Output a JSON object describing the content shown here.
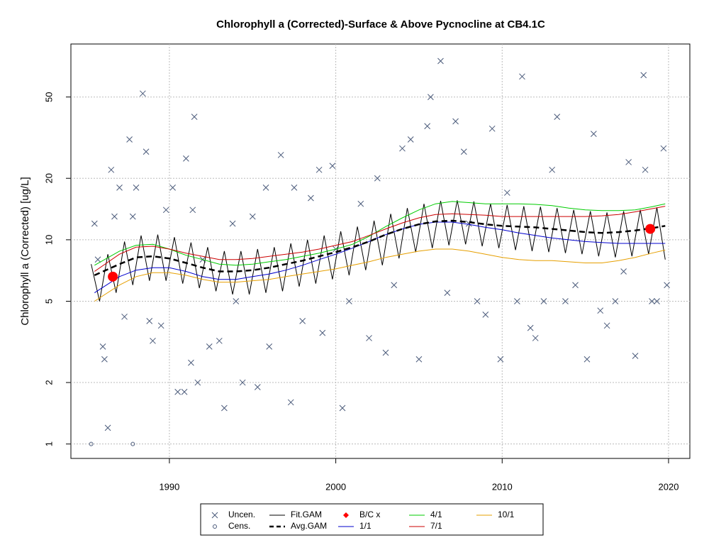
{
  "chart_data": {
    "type": "line",
    "title": "Chlorophyll a (Corrected)-Surface & Above Pycnocline at CB4.1C",
    "y_label": "Chlorophyll a (Corrected) [ug/L]",
    "xlim": [
      1984.08,
      2021.28
    ],
    "ylim": [
      0.85,
      90.9
    ],
    "log_y": true,
    "grid": true,
    "legend_position": "bottom",
    "xticks": [
      1990,
      2000,
      2010,
      2020
    ],
    "yticks": [
      1,
      2,
      5,
      10,
      20,
      50
    ],
    "series": [
      {
        "name": "Uncen.",
        "color": "#4a5a7a",
        "style": "x",
        "x": [
          1985.5,
          1985.7,
          1986,
          1986.1,
          1986.3,
          1986.5,
          1986.7,
          1987,
          1987.3,
          1987.6,
          1987.8,
          1988,
          1988.4,
          1988.6,
          1988.8,
          1989,
          1989.5,
          1989.8,
          1990.2,
          1990.5,
          1990.9,
          1991,
          1991.4,
          1991.5,
          1991.3,
          1991.7,
          1992,
          1992.4,
          1993,
          1993.3,
          1993.8,
          1994,
          1994.4,
          1995,
          1995.3,
          1995.8,
          1996,
          1996.7,
          1997.3,
          1997.5,
          1998,
          1998.5,
          1999,
          1999.2,
          1999.8,
          2000,
          2000.4,
          2000.8,
          2001.5,
          2002,
          2002.5,
          2003,
          2003.5,
          2004,
          2004.5,
          2005,
          2005.5,
          2005.7,
          2006.3,
          2006.7,
          2007.2,
          2007.7,
          2008,
          2008.5,
          2009,
          2009.4,
          2009.9,
          2010.3,
          2010.9,
          2011.2,
          2011.7,
          2012,
          2012.5,
          2013,
          2013.3,
          2013.8,
          2014.4,
          2015.1,
          2015.5,
          2015.9,
          2016.3,
          2016.8,
          2017.3,
          2017.6,
          2018,
          2018.5,
          2018.6,
          2019,
          2019.3,
          2019.7,
          2019.9
        ],
        "values": [
          12,
          8,
          3,
          2.6,
          1.2,
          22,
          13,
          18,
          4.2,
          31,
          13,
          18,
          52,
          27,
          4,
          3.2,
          3.8,
          14,
          18,
          1.8,
          1.8,
          25,
          14,
          40,
          2.5,
          2,
          8,
          3,
          3.2,
          1.5,
          12,
          5,
          2,
          13,
          1.9,
          18,
          3,
          26,
          1.6,
          18,
          4,
          16,
          22,
          3.5,
          23,
          9,
          1.5,
          5,
          15,
          3.3,
          20,
          2.8,
          6,
          28,
          31,
          2.6,
          36,
          50,
          75,
          5.5,
          38,
          27,
          12,
          5,
          4.3,
          35,
          2.6,
          17,
          5,
          63,
          3.7,
          3.3,
          5,
          22,
          40,
          5,
          6,
          2.6,
          33,
          4.5,
          3.8,
          5,
          7,
          24,
          2.7,
          64,
          22,
          5,
          5,
          28,
          6
        ]
      },
      {
        "name": "Cens.",
        "color": "#4a5a7a",
        "style": "circle",
        "x": [
          1985.3,
          1987.8
        ],
        "values": [
          1,
          1
        ]
      },
      {
        "name": "Fit.GAM",
        "color": "#000000",
        "style": "line",
        "x": [
          1985.3,
          1985.8,
          1986.3,
          1986.8,
          1987.3,
          1987.8,
          1988.3,
          1988.8,
          1989.3,
          1989.8,
          1990.3,
          1990.8,
          1991.3,
          1991.8,
          1992.3,
          1992.8,
          1993.3,
          1993.8,
          1994.3,
          1994.8,
          1995.3,
          1995.8,
          1996.3,
          1996.8,
          1997.3,
          1997.8,
          1998.3,
          1998.8,
          1999.3,
          1999.8,
          2000.3,
          2000.8,
          2001.3,
          2001.8,
          2002.3,
          2002.8,
          2003.3,
          2003.8,
          2004.3,
          2004.8,
          2005.3,
          2005.8,
          2006.3,
          2006.8,
          2007.3,
          2007.8,
          2008.3,
          2008.8,
          2009.3,
          2009.8,
          2010.3,
          2010.8,
          2011.3,
          2011.8,
          2012.3,
          2012.8,
          2013.3,
          2013.8,
          2014.3,
          2014.8,
          2015.3,
          2015.8,
          2016.3,
          2016.8,
          2017.3,
          2017.8,
          2018.3,
          2018.8,
          2019.3,
          2019.8
        ],
        "values": [
          7.6,
          5.0,
          8.5,
          5.5,
          9.8,
          6.0,
          10.5,
          6.3,
          10.6,
          6.3,
          10.3,
          6.1,
          9.7,
          5.8,
          9.2,
          5.6,
          8.8,
          5.4,
          8.8,
          5.4,
          9.0,
          5.5,
          9.2,
          5.6,
          9.6,
          5.9,
          10.0,
          6.1,
          10.5,
          6.4,
          11.0,
          6.7,
          11.6,
          7.1,
          12.4,
          7.5,
          13.4,
          8.1,
          14.3,
          8.7,
          15.0,
          9.1,
          15.5,
          9.4,
          15.6,
          9.5,
          15.4,
          9.3,
          15.0,
          9.1,
          14.8,
          8.9,
          14.6,
          8.8,
          14.5,
          8.7,
          14.3,
          8.6,
          14.0,
          8.5,
          13.8,
          8.3,
          13.6,
          8.2,
          13.8,
          8.3,
          14.0,
          8.5,
          14.4,
          8.0
        ]
      },
      {
        "name": "Avg.GAM",
        "color": "#000000",
        "style": "dashed",
        "x": [
          1985.5,
          1987,
          1988,
          1989,
          1990,
          1991,
          1992,
          1993,
          1994,
          1995,
          1996,
          1997,
          1998,
          1999,
          2000,
          2001,
          2002,
          2003,
          2004,
          2005,
          2006,
          2007,
          2008,
          2009,
          2010,
          2011,
          2012,
          2013,
          2014,
          2015,
          2016,
          2017,
          2018,
          2019,
          2019.8
        ],
        "values": [
          6.7,
          7.6,
          8.2,
          8.3,
          8.1,
          7.7,
          7.3,
          7.0,
          7.0,
          7.1,
          7.3,
          7.6,
          7.9,
          8.3,
          8.7,
          9.2,
          9.8,
          10.6,
          11.3,
          11.9,
          12.3,
          12.4,
          12.2,
          11.9,
          11.7,
          11.6,
          11.5,
          11.3,
          11.1,
          10.9,
          10.8,
          10.9,
          11.1,
          11.4,
          11.7
        ]
      },
      {
        "name": "B/C x",
        "color": "#ff0000",
        "style": "dot",
        "x": [
          1986.6,
          2018.9
        ],
        "values": [
          6.6,
          11.3
        ]
      },
      {
        "name": "1/1",
        "color": "#0000cd",
        "style": "line",
        "x": [
          1985.5,
          1987,
          1988,
          1989,
          1990,
          1991,
          1992,
          1993,
          1994,
          1995,
          1996,
          1997,
          1998,
          1999,
          2000,
          2001,
          2002,
          2003,
          2004,
          2005,
          2006,
          2007,
          2008,
          2009,
          2010,
          2011,
          2012,
          2013,
          2014,
          2015,
          2016,
          2017,
          2018,
          2019,
          2019.8
        ],
        "values": [
          5.5,
          6.6,
          7.1,
          7.3,
          7.3,
          7.0,
          6.6,
          6.4,
          6.4,
          6.6,
          6.8,
          7.1,
          7.5,
          8.0,
          8.5,
          9.1,
          9.8,
          10.6,
          11.3,
          11.9,
          12.2,
          12.2,
          11.9,
          11.5,
          11.2,
          10.8,
          10.5,
          10.2,
          10.0,
          9.8,
          9.7,
          9.6,
          9.6,
          9.6,
          9.6
        ]
      },
      {
        "name": "4/1",
        "color": "#00cc00",
        "style": "line",
        "x": [
          1985.5,
          1987,
          1988,
          1989,
          1990,
          1991,
          1992,
          1993,
          1994,
          1995,
          1996,
          1997,
          1998,
          1999,
          2000,
          2001,
          2002,
          2003,
          2004,
          2005,
          2006,
          2007,
          2008,
          2009,
          2010,
          2011,
          2012,
          2013,
          2014,
          2015,
          2016,
          2017,
          2018,
          2019,
          2019.8
        ],
        "values": [
          7.5,
          8.8,
          9.4,
          9.5,
          9.0,
          8.4,
          8.0,
          7.6,
          7.5,
          7.6,
          7.8,
          8.0,
          8.3,
          8.6,
          9.0,
          9.5,
          10.4,
          11.6,
          12.8,
          14.0,
          15.0,
          15.4,
          15.2,
          15.0,
          15.0,
          15.0,
          14.9,
          14.7,
          14.3,
          14.0,
          13.9,
          13.9,
          14.0,
          14.5,
          15.0
        ]
      },
      {
        "name": "7/1",
        "color": "#cc0000",
        "style": "line",
        "x": [
          1985.5,
          1987,
          1988,
          1989,
          1990,
          1991,
          1992,
          1993,
          1994,
          1995,
          1996,
          1997,
          1998,
          1999,
          2000,
          2001,
          2002,
          2003,
          2004,
          2005,
          2006,
          2007,
          2008,
          2009,
          2010,
          2011,
          2012,
          2013,
          2014,
          2015,
          2016,
          2017,
          2018,
          2019,
          2019.8
        ],
        "values": [
          7.0,
          8.5,
          9.2,
          9.3,
          9.0,
          8.6,
          8.3,
          8.0,
          8.0,
          8.1,
          8.3,
          8.5,
          8.7,
          9.0,
          9.4,
          9.8,
          10.5,
          11.3,
          12.1,
          12.8,
          13.3,
          13.4,
          13.3,
          13.2,
          13.0,
          13.0,
          13.0,
          13.0,
          13.0,
          13.0,
          13.1,
          13.3,
          13.7,
          14.2,
          14.6
        ]
      },
      {
        "name": "10/1",
        "color": "#e69f00",
        "style": "line",
        "x": [
          1985.5,
          1987,
          1988,
          1989,
          1990,
          1991,
          1992,
          1993,
          1994,
          1995,
          1996,
          1997,
          1998,
          1999,
          2000,
          2001,
          2002,
          2003,
          2004,
          2005,
          2006,
          2007,
          2008,
          2009,
          2010,
          2011,
          2012,
          2013,
          2014,
          2015,
          2016,
          2017,
          2018,
          2019,
          2019.8
        ],
        "values": [
          5.0,
          6.0,
          6.6,
          6.9,
          6.9,
          6.7,
          6.4,
          6.2,
          6.2,
          6.3,
          6.4,
          6.6,
          6.8,
          7.0,
          7.2,
          7.5,
          7.8,
          8.2,
          8.5,
          8.8,
          9.0,
          9.0,
          8.8,
          8.5,
          8.2,
          8.0,
          7.9,
          7.9,
          7.8,
          7.7,
          7.7,
          7.9,
          8.2,
          8.6,
          8.9
        ]
      }
    ]
  }
}
